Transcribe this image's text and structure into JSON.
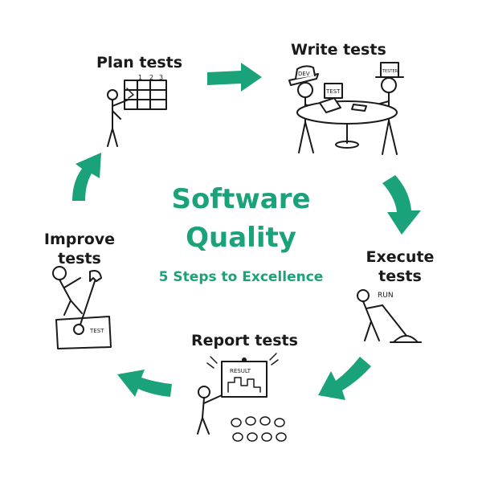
{
  "center": {
    "title_line1": "Software",
    "title_line2": "Quality",
    "subtitle": "5 Steps to Excellence"
  },
  "steps": [
    {
      "label": "Plan tests"
    },
    {
      "label": "Write tests"
    },
    {
      "label": "Execute tests"
    },
    {
      "label": "Report tests"
    },
    {
      "label": "Improve tests"
    }
  ],
  "illustration_text": {
    "plan_board_numbers": [
      "1",
      "2",
      "3"
    ],
    "write_hat_left": "DEV",
    "write_hat_right": "TESTER",
    "write_paper": "TEST",
    "execute_word": "RUN",
    "report_board": "RESULT",
    "improve_box": "TEST"
  },
  "colors": {
    "accent": "#1aa37a",
    "ink": "#1a1a1a"
  }
}
